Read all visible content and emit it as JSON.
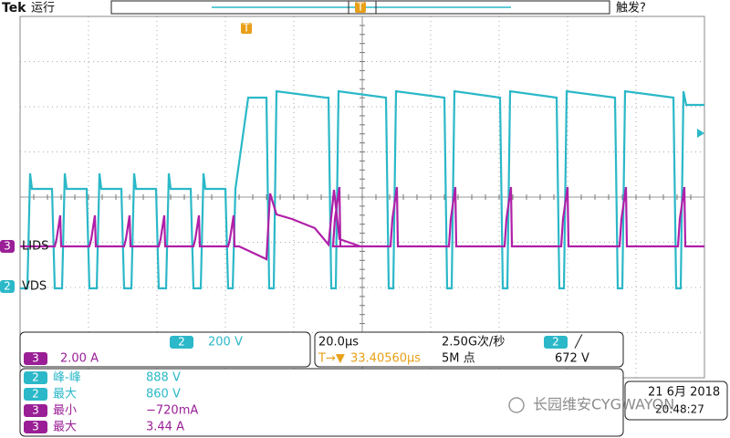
{
  "header": {
    "brand": "Tek",
    "status": "运行",
    "trigger_status": "触发?",
    "trigger_marker": "T"
  },
  "waveform_marker": "T",
  "channels": [
    {
      "number": "3",
      "label": "LIDS"
    },
    {
      "number": "2",
      "label": "VDS"
    }
  ],
  "settings": {
    "ch2_badge": "2",
    "ch2_scale": "200 V",
    "ch3_badge": "3",
    "ch3_scale": "2.00 A",
    "timebase": "20.0µs",
    "sample_rate": "2.50G次/秒",
    "trigger_badge": "2",
    "trigger_slope": "╱",
    "trigger_offset_icon": "T→▼",
    "trigger_offset": "33.40560µs",
    "record_length": "5M 点",
    "trigger_level": "672 V"
  },
  "measurements": [
    {
      "channel": "2",
      "name": "峰-峰",
      "value": "888 V"
    },
    {
      "channel": "2",
      "name": "最大",
      "value": "860 V"
    },
    {
      "channel": "3",
      "name": "最小",
      "value": "−720mA"
    },
    {
      "channel": "3",
      "name": "最大",
      "value": "3.44 A"
    }
  ],
  "datetime": {
    "date": "21 6月 2018",
    "time": "20:48:27"
  },
  "watermark": "长园维安CYGWAYON"
}
